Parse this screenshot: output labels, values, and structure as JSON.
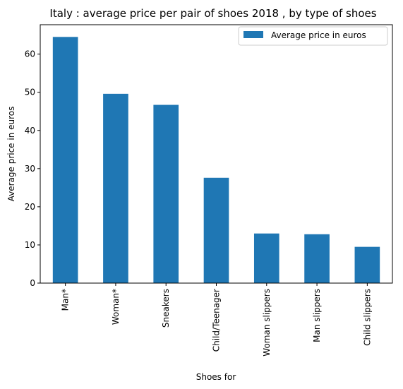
{
  "chart_data": {
    "type": "bar",
    "title": "Italy : average price per pair of shoes 2018 , by type of shoes",
    "xlabel": "Shoes for",
    "ylabel": "Average price in euros",
    "categories": [
      "Man*",
      "Woman*",
      "Sneakers",
      "Child/Teenager",
      "Woman slippers",
      "Man slippers",
      "Child slippers"
    ],
    "series": [
      {
        "name": "Average price in euros",
        "values": [
          64.5,
          49.6,
          46.7,
          27.6,
          13.0,
          12.8,
          9.5
        ],
        "color": "#1f77b4"
      }
    ],
    "ylim": [
      0,
      67.7
    ],
    "yticks": [
      0,
      10,
      20,
      30,
      40,
      50,
      60
    ],
    "legend_position": "top-right",
    "grid": false
  }
}
